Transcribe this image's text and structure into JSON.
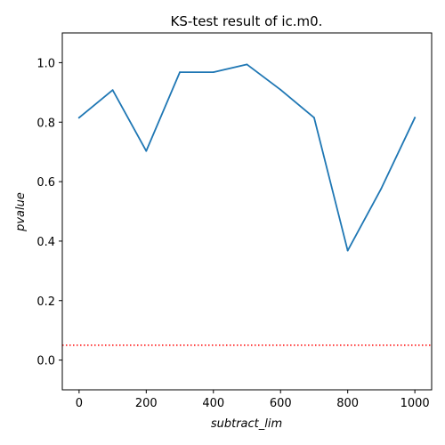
{
  "chart_data": {
    "type": "line",
    "title": "KS-test result of ic.m0.",
    "xlabel": "subtract_lim",
    "ylabel": "pvalue",
    "xlim": [
      -50,
      1050
    ],
    "ylim": [
      -0.1,
      1.1
    ],
    "xticks": [
      0,
      200,
      400,
      600,
      800,
      1000
    ],
    "yticks": [
      0.0,
      0.2,
      0.4,
      0.6,
      0.8,
      1.0
    ],
    "xtick_labels": [
      "0",
      "200",
      "400",
      "600",
      "800",
      "1000"
    ],
    "ytick_labels": [
      "0.0",
      "0.2",
      "0.4",
      "0.6",
      "0.8",
      "1.0"
    ],
    "grid": false,
    "series": [
      {
        "color": "#1f77b4",
        "x": [
          0,
          100,
          200,
          300,
          400,
          500,
          600,
          700,
          800,
          900,
          1000
        ],
        "y": [
          0.815,
          0.908,
          0.703,
          0.968,
          0.968,
          0.994,
          0.909,
          0.815,
          0.368,
          0.577,
          0.815
        ]
      }
    ],
    "threshold": {
      "y": 0.05,
      "color": "#ff0000",
      "style": "dotted"
    }
  }
}
